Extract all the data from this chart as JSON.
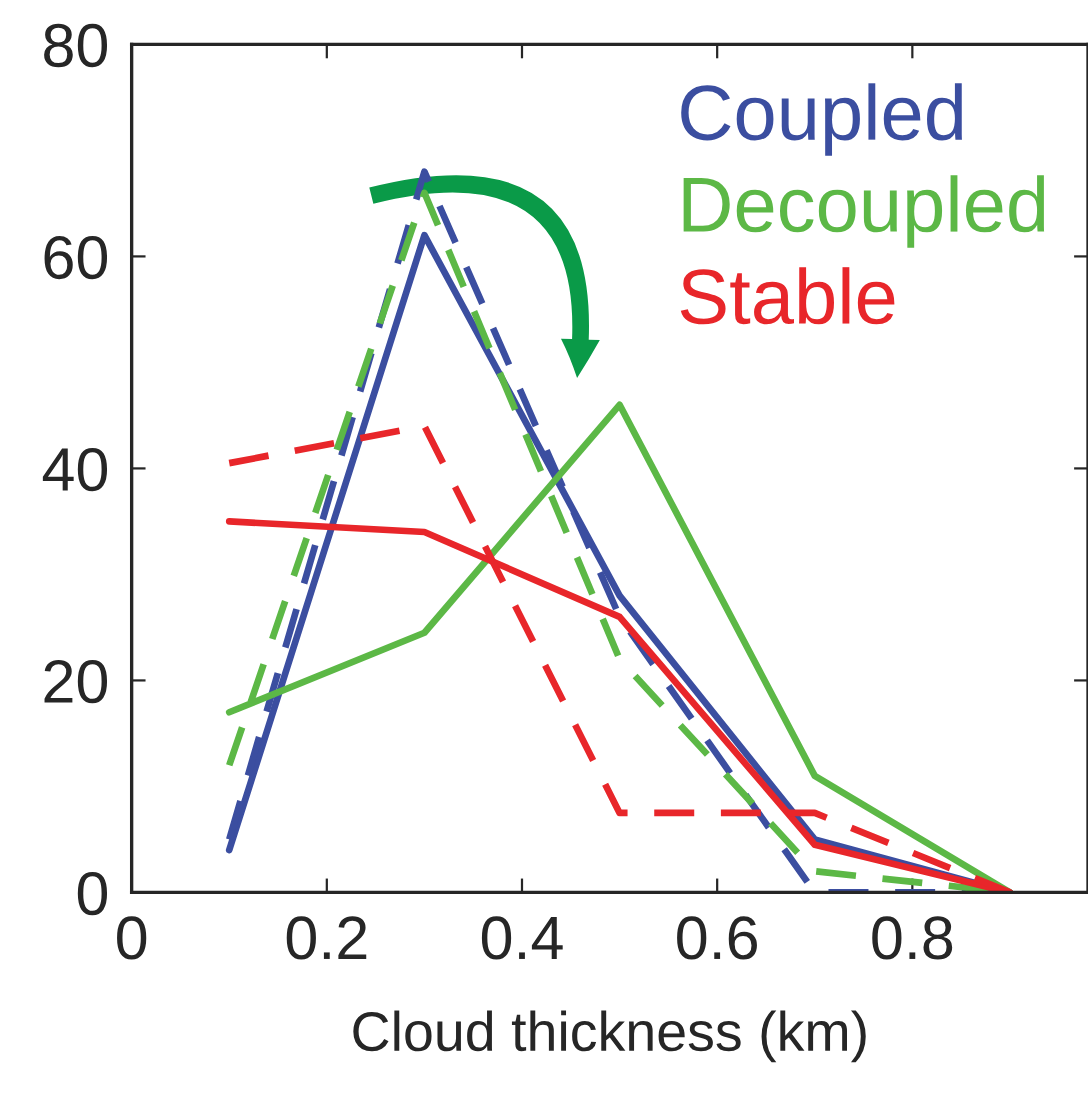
{
  "chart_data": {
    "type": "line",
    "xlabel": "Cloud thickness (km)",
    "x": [
      0.1,
      0.3,
      0.5,
      0.7,
      0.9
    ],
    "series": [
      {
        "name": "Coupled",
        "color": "#3b4ea0",
        "values": [
          4,
          62,
          28,
          5,
          0
        ],
        "line_style": "solid"
      },
      {
        "color": "#3b4ea0",
        "values": [
          5,
          68,
          26,
          0,
          0
        ],
        "line_style": "dashed"
      },
      {
        "name": "Decoupled",
        "color": "#5cb846",
        "values": [
          17,
          24.5,
          46,
          11,
          0
        ],
        "line_style": "solid"
      },
      {
        "color": "#5cb846",
        "values": [
          12,
          66,
          22,
          2,
          0
        ],
        "line_style": "dashed"
      },
      {
        "name": "Stable",
        "color": "#e8262a",
        "values": [
          35,
          34,
          26,
          4.5,
          0
        ],
        "line_style": "solid"
      },
      {
        "color": "#e8262a",
        "values": [
          40.5,
          44,
          7.5,
          7.5,
          0
        ],
        "line_style": "dashed"
      }
    ],
    "xlim": [
      0,
      0.98
    ],
    "ylim": [
      0,
      80
    ],
    "xticks": [
      0,
      0.2,
      0.4,
      0.6,
      0.8
    ],
    "yticks": [
      0,
      20,
      40,
      60,
      80
    ],
    "grid": false,
    "legend": "top right",
    "marker": "none"
  }
}
